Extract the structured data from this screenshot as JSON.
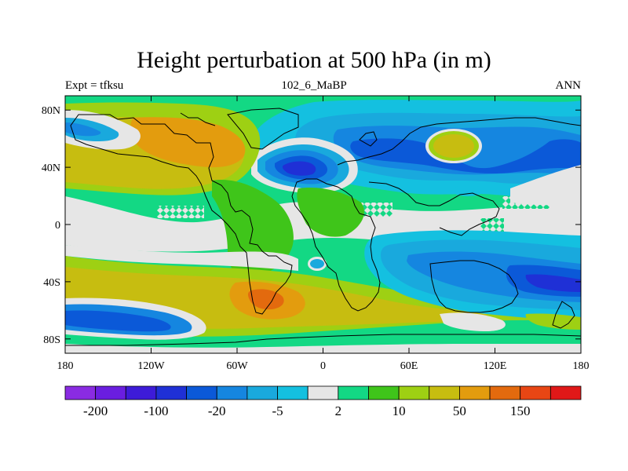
{
  "figure": {
    "title": "Height perturbation at 500 hPa (in m)",
    "left_string": "Expt = tfksu",
    "center_string": "102_6_MaBP",
    "right_string": "ANN"
  },
  "map": {
    "lon_ticks": [
      "180",
      "120W",
      "60W",
      "0",
      "60E",
      "120E",
      "180"
    ],
    "lon_values": [
      -180,
      -120,
      -60,
      0,
      60,
      120,
      180
    ],
    "lat_ticks": [
      "80N",
      "40N",
      "0",
      "40S",
      "80S"
    ],
    "lat_values": [
      80,
      40,
      0,
      -40,
      -80
    ],
    "lon_range": [
      -180,
      180
    ],
    "lat_range": [
      -90,
      90
    ]
  },
  "colorbar": {
    "colors": [
      "#8a2be2",
      "#6a1ee0",
      "#3d1bd8",
      "#1f30d6",
      "#0b59d8",
      "#1586e0",
      "#19a9dd",
      "#14c0e0",
      "#e6e6e6",
      "#13d884",
      "#3fc51a",
      "#9ed013",
      "#c7bd10",
      "#e39c0e",
      "#e36a0e",
      "#e84614",
      "#e01818"
    ],
    "labels": [
      "-200",
      "-100",
      "-20",
      "-5",
      "2",
      "10",
      "50",
      "150"
    ]
  }
}
